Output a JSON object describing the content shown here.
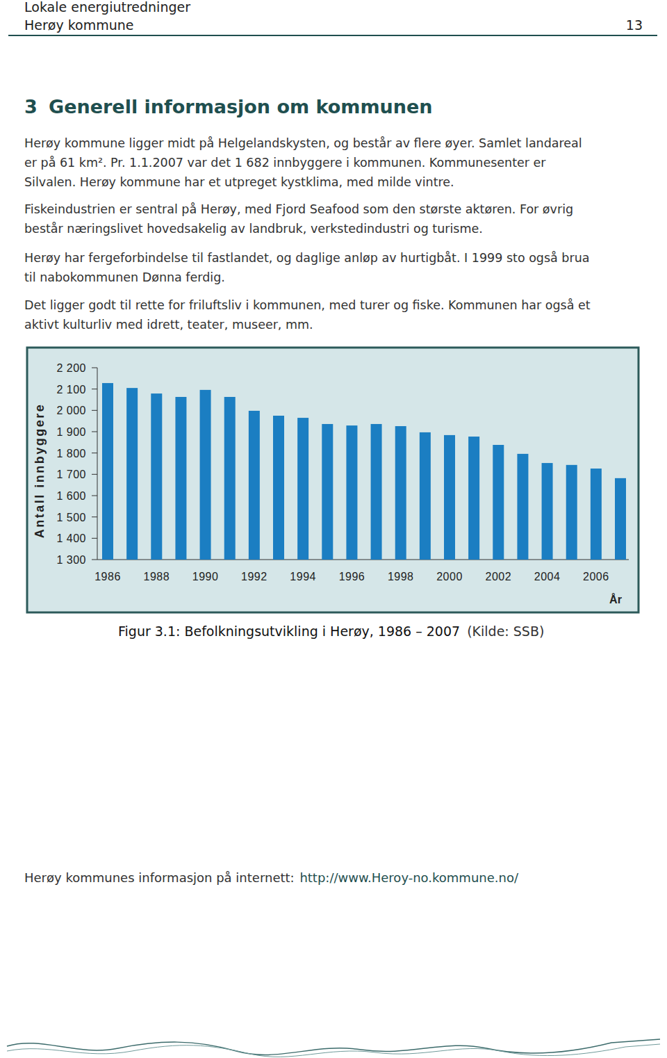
{
  "header": {
    "left_top": "Lokale energiutredninger",
    "left_bottom": "Herøy kommune",
    "page_number": "13"
  },
  "heading": {
    "number": "3",
    "title": "Generell informasjon om kommunen"
  },
  "paragraphs": [
    [
      "Herøy kommune ligger midt på Helgelandskysten, og består av flere øyer. Samlet landareal",
      "er på 61 km². Pr. 1.1.2007 var det 1 682 innbyggere i kommunen. Kommunesenter er",
      "Silvalen. Herøy kommune har et utpreget kystklima, med milde vintre."
    ],
    [
      "Fiskeindustrien er sentral på Herøy, med Fjord Seafood som den største aktøren. For øvrig",
      "består næringslivet hovedsakelig av landbruk, verkstedindustri og turisme."
    ],
    [
      "Herøy har fergeforbindelse til fastlandet, og daglige anløp av hurtigbåt. I 1999 sto også brua",
      "til nabokommunen Dønna ferdig."
    ],
    [
      "Det ligger godt til rette for friluftsliv i kommunen, med turer og fiske. Kommunen har også et",
      "aktivt kulturliv med idrett, teater, museer, mm."
    ]
  ],
  "chart_data": {
    "type": "bar",
    "title": "Figur 3.1: Befolkningsutvikling i Herøy, 1986 – 2007",
    "annotations": [
      "(Kilde: SSB)"
    ],
    "x_label": "År",
    "y_label": "Antall innbyggere",
    "categories": [
      "1986",
      null,
      "1988",
      null,
      "1990",
      null,
      "1992",
      null,
      "1994",
      null,
      "1996",
      null,
      "1998",
      null,
      "2000",
      null,
      "2002",
      null,
      "2004",
      null,
      "2006",
      null
    ],
    "values": [
      2128,
      2105,
      2079,
      2063,
      2096,
      2063,
      1998,
      1975,
      1965,
      1936,
      1929,
      1936,
      1926,
      1897,
      1884,
      1877,
      1838,
      1796,
      1753,
      1744,
      1727,
      1682
    ],
    "color": "#1b7ec2",
    "ylim": [
      1300,
      2200
    ],
    "yticks": [
      {
        "value": 1300,
        "label": "1 300"
      },
      {
        "value": 1400,
        "label": "1 400"
      },
      {
        "value": 1500,
        "label": "1 500"
      },
      {
        "value": 1600,
        "label": "1 600"
      },
      {
        "value": 1700,
        "label": "1 700"
      },
      {
        "value": 1800,
        "label": "1 800"
      },
      {
        "value": 1900,
        "label": "1 900"
      },
      {
        "value": 2000,
        "label": "2 000"
      },
      {
        "value": 2100,
        "label": "2 100"
      },
      {
        "value": 2200,
        "label": "2 200"
      }
    ],
    "grid": false
  },
  "footer": {
    "text": "Herøy kommunes informasjon på internett: ",
    "link": "http://www.Heroy-no.kommune.no/"
  }
}
